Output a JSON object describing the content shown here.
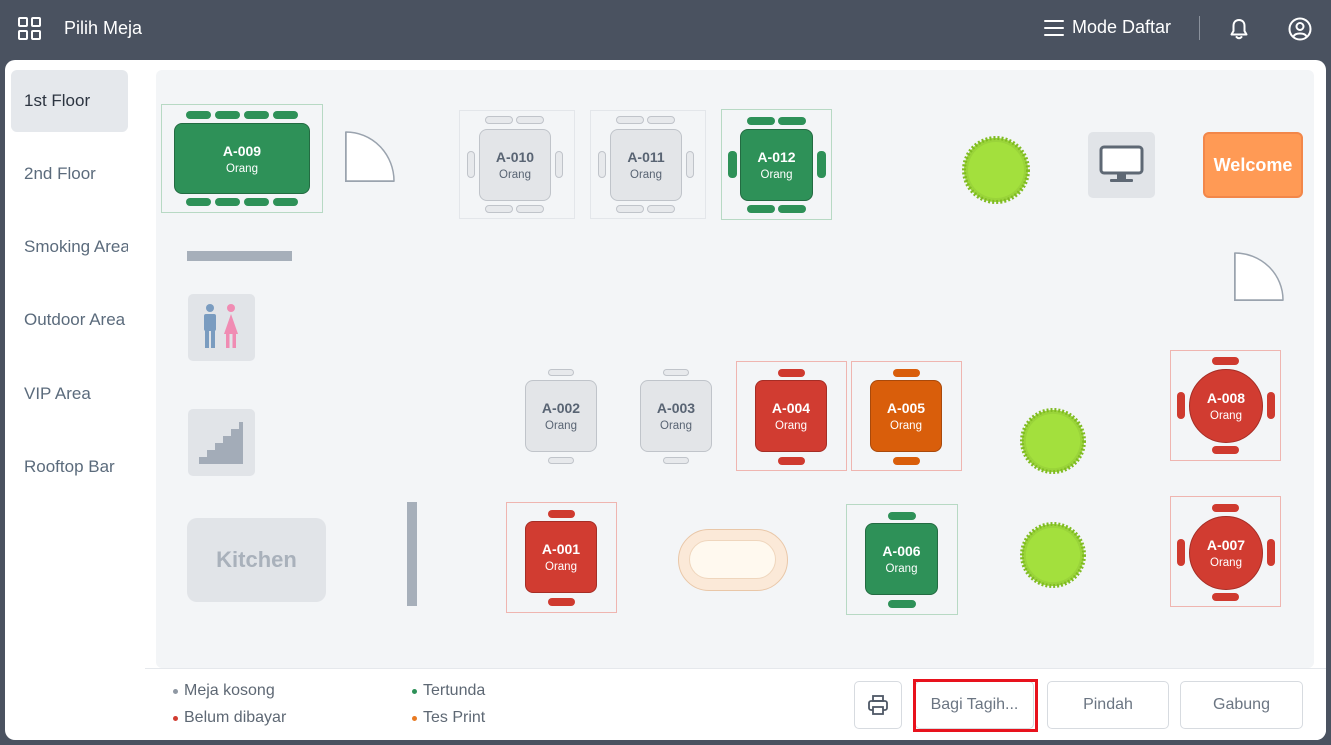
{
  "header": {
    "title": "Pilih Meja",
    "mode_label": "Mode Daftar"
  },
  "sidebar": {
    "items": [
      {
        "label": "1st Floor",
        "active": true
      },
      {
        "label": "2nd Floor"
      },
      {
        "label": "Smoking Area"
      },
      {
        "label": "Outdoor Area"
      },
      {
        "label": "VIP Area"
      },
      {
        "label": "Rooftop Bar"
      }
    ]
  },
  "floor": {
    "tables": [
      {
        "name": "A-009",
        "sub": "Orang",
        "status": "green"
      },
      {
        "name": "A-010",
        "sub": "Orang",
        "status": "gray"
      },
      {
        "name": "A-011",
        "sub": "Orang",
        "status": "gray"
      },
      {
        "name": "A-012",
        "sub": "Orang",
        "status": "green"
      },
      {
        "name": "A-002",
        "sub": "Orang",
        "status": "gray"
      },
      {
        "name": "A-003",
        "sub": "Orang",
        "status": "gray"
      },
      {
        "name": "A-004",
        "sub": "Orang",
        "status": "red"
      },
      {
        "name": "A-005",
        "sub": "Orang",
        "status": "orange"
      },
      {
        "name": "A-008",
        "sub": "Orang",
        "status": "red"
      },
      {
        "name": "A-001",
        "sub": "Orang",
        "status": "red"
      },
      {
        "name": "A-006",
        "sub": "Orang",
        "status": "green"
      },
      {
        "name": "A-007",
        "sub": "Orang",
        "status": "red"
      }
    ],
    "welcome_label": "Welcome",
    "kitchen_label": "Kitchen"
  },
  "legend": [
    {
      "label": "Meja kosong",
      "color": "#8f98a3"
    },
    {
      "label": "Tertunda",
      "color": "#2e9158"
    },
    {
      "label": "Belum dibayar",
      "color": "#d13c31"
    },
    {
      "label": "Tes Print",
      "color": "#e87a22"
    }
  ],
  "actions": {
    "split_bill": "Bagi Tagih...",
    "move": "Pindah",
    "merge": "Gabung"
  },
  "colors": {
    "header_bg": "#4a5260",
    "green": "#2e9158",
    "red": "#d13c31",
    "orange": "#d95e0b",
    "highlight": "#e8121d"
  }
}
